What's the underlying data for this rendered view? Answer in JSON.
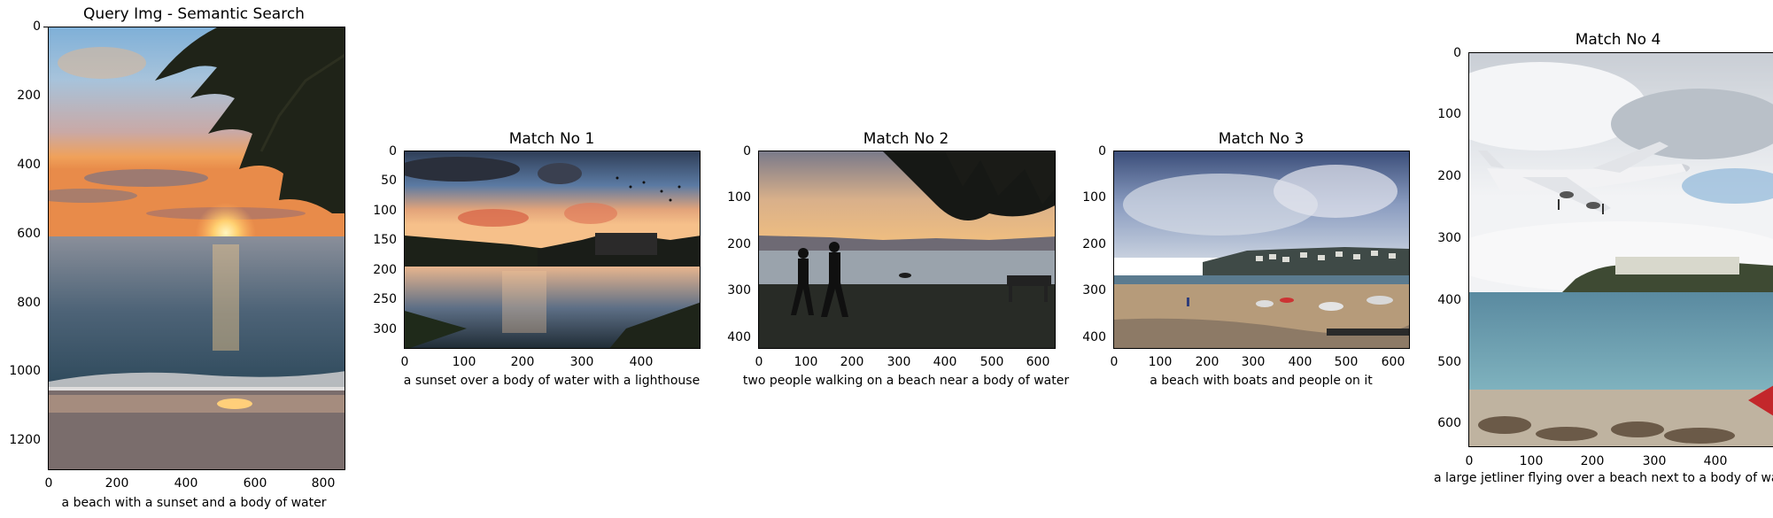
{
  "panels": [
    {
      "title": "Query Img - Semantic Search",
      "caption": "a beach with a sunset and a body of water",
      "scene": "beach sunset with palm fronds",
      "yticks": [
        "0",
        "200",
        "400",
        "600",
        "800",
        "1000",
        "1200"
      ],
      "xticks": [
        "0",
        "200",
        "400",
        "600",
        "800"
      ]
    },
    {
      "title": "Match No 1",
      "caption": "a sunset over a body of water with a lighthouse",
      "scene": "sunset over river with trees and buildings",
      "yticks": [
        "0",
        "50",
        "100",
        "150",
        "200",
        "250",
        "300"
      ],
      "xticks": [
        "0",
        "100",
        "200",
        "300",
        "400"
      ]
    },
    {
      "title": "Match No 2",
      "caption": "two people walking on a beach near a body of water",
      "scene": "two people silhouetted walking at sunset",
      "yticks": [
        "0",
        "100",
        "200",
        "300",
        "400"
      ],
      "xticks": [
        "0",
        "100",
        "200",
        "300",
        "400",
        "500",
        "600"
      ]
    },
    {
      "title": "Match No 3",
      "caption": "a beach with boats and people on it",
      "scene": "beach at low tide with boats and town",
      "yticks": [
        "0",
        "100",
        "200",
        "300",
        "400"
      ],
      "xticks": [
        "0",
        "100",
        "200",
        "300",
        "400",
        "500",
        "600"
      ]
    },
    {
      "title": "Match No 4",
      "caption": "a large jetliner flying over a beach next to a body of wa",
      "scene": "jetliner flying low over beach",
      "yticks": [
        "0",
        "100",
        "200",
        "300",
        "400",
        "500",
        "600"
      ],
      "xticks": [
        "0",
        "100",
        "200",
        "300",
        "400"
      ]
    }
  ],
  "colors": {
    "axis": "#000000",
    "background": "#ffffff"
  }
}
